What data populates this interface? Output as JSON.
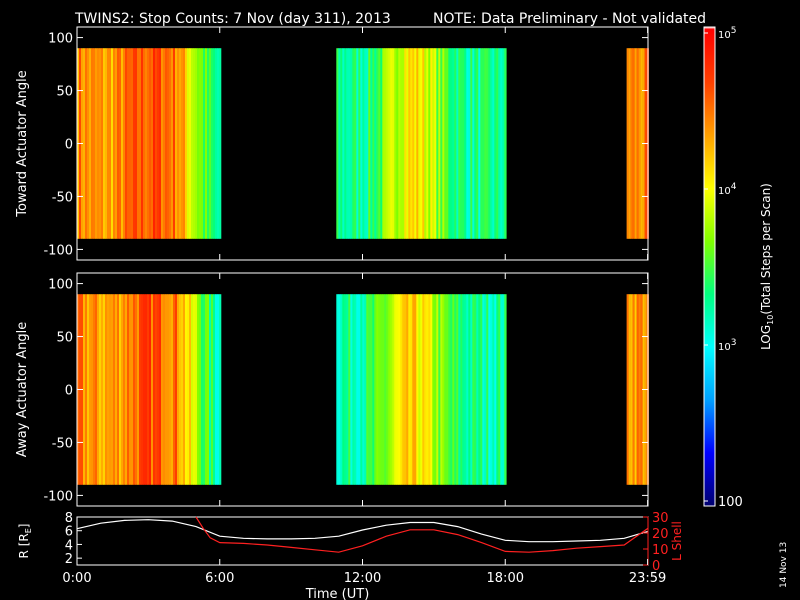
{
  "title": {
    "main": "TWINS2: Stop Counts:  7 Nov (day 311), 2013",
    "note": "NOTE: Data Preliminary - Not validated",
    "note_color": "#ff2020"
  },
  "stamp": "14 Nov 13",
  "chart_data": [
    {
      "type": "heatmap",
      "name": "toward-panel",
      "ylabel": "Toward Actuator Angle",
      "ylim": [
        -110,
        110
      ],
      "yticks": [
        "100",
        "50",
        "0",
        "-50",
        "-100"
      ],
      "xlim": [
        0,
        24
      ],
      "data_angle_range": [
        -90,
        90
      ],
      "segments": [
        {
          "start": 0.0,
          "end": 6.0,
          "profile": "high-to-low"
        },
        {
          "start": 10.9,
          "end": 18.0,
          "profile": "low-mid-low"
        },
        {
          "start": 23.1,
          "end": 24.0,
          "profile": "high"
        }
      ]
    },
    {
      "type": "heatmap",
      "name": "away-panel",
      "ylabel": "Away Actuator Angle",
      "ylim": [
        -110,
        110
      ],
      "yticks": [
        "100",
        "50",
        "0",
        "-50",
        "-100"
      ],
      "xlim": [
        0,
        24
      ],
      "data_angle_range": [
        -90,
        90
      ],
      "segments": [
        {
          "start": 0.0,
          "end": 6.0,
          "profile": "high-to-low"
        },
        {
          "start": 10.9,
          "end": 18.0,
          "profile": "low-mid-low"
        },
        {
          "start": 23.1,
          "end": 24.0,
          "profile": "high"
        }
      ]
    },
    {
      "type": "line",
      "name": "orbit-panel",
      "ylabel": "R [R",
      "ylabel_sub": "E",
      "ylabel_close": "]",
      "ylim": [
        1,
        8
      ],
      "yticks": [
        "8",
        "6",
        "4",
        "2"
      ],
      "y2label": "L Shell",
      "y2lim": [
        0,
        30
      ],
      "y2ticks": [
        "30",
        "20",
        "10",
        "0"
      ],
      "xlabel": "Time (UT)",
      "xticks": [
        "0:00",
        "6:00",
        "12:00",
        "18:00",
        "23:59"
      ],
      "xtick_values": [
        0,
        6,
        12,
        18,
        23.983
      ],
      "series": [
        {
          "name": "R",
          "color": "#ffffff",
          "x": [
            0,
            1,
            2,
            3,
            4,
            5,
            6,
            7,
            8,
            9,
            10,
            11,
            12,
            13,
            14,
            15,
            16,
            17,
            18,
            19,
            20,
            21,
            22,
            23,
            24
          ],
          "y": [
            6.3,
            7.1,
            7.5,
            7.6,
            7.4,
            6.6,
            5.2,
            4.9,
            4.8,
            4.8,
            4.9,
            5.2,
            6.1,
            6.8,
            7.2,
            7.2,
            6.6,
            5.5,
            4.6,
            4.4,
            4.4,
            4.5,
            4.6,
            4.9,
            5.9
          ]
        },
        {
          "name": "L Shell",
          "color": "#ff2020",
          "x": [
            5.0,
            5.3,
            5.6,
            6,
            7,
            8,
            9,
            10,
            11,
            12,
            13,
            14,
            15,
            16,
            17,
            18,
            19,
            20,
            21,
            22,
            23,
            24
          ],
          "y": [
            30,
            23,
            17,
            14,
            13.5,
            12.5,
            11,
            9.5,
            8,
            12,
            18,
            22,
            22,
            19,
            14,
            8.5,
            8,
            9,
            10.5,
            11.5,
            12.5,
            23
          ]
        }
      ]
    }
  ],
  "colorbar": {
    "label": "LOG",
    "label_sub": "10",
    "label_rest": "(Total Steps per Scan)",
    "ticks": [
      {
        "base": "10",
        "exp": "5"
      },
      {
        "base": "10",
        "exp": "4"
      },
      {
        "base": "10",
        "exp": "3"
      },
      {
        "base": "100",
        "exp": ""
      }
    ],
    "colors": [
      "#00006e",
      "#0000ff",
      "#00a0ff",
      "#00ffff",
      "#00ff80",
      "#80ff00",
      "#ffff00",
      "#ffa000",
      "#ff4000",
      "#ff0000",
      "#ffffff"
    ]
  }
}
